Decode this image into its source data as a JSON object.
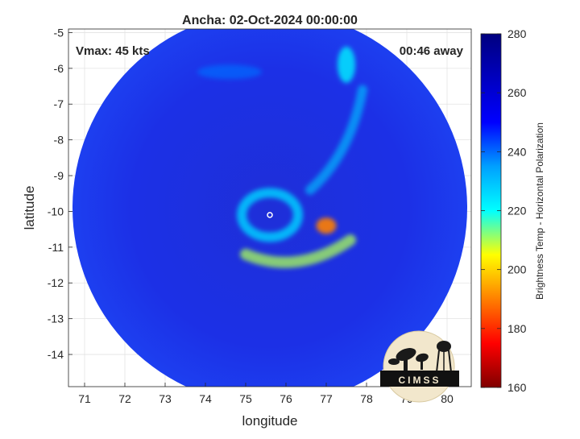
{
  "chart_data": {
    "type": "heatmap",
    "title": "Ancha: 02-Oct-2024 00:00:00",
    "annotation_left": "Vmax: 45 kts",
    "annotation_right": "00:46 away",
    "xlabel": "longitude",
    "ylabel": "latitude",
    "xlim": [
      70.6,
      80.6
    ],
    "ylim": [
      -14.9,
      -4.9
    ],
    "x_ticks": [
      71,
      72,
      73,
      74,
      75,
      76,
      77,
      78,
      79,
      80
    ],
    "y_ticks": [
      -5,
      -6,
      -7,
      -8,
      -9,
      -10,
      -11,
      -12,
      -13,
      -14
    ],
    "grid": true,
    "colorbar": {
      "label": "Brightness Temp - Horizontal Polarization",
      "min": 160,
      "max": 280,
      "ticks": [
        280,
        260,
        240,
        220,
        200,
        180,
        160
      ],
      "colormap": [
        "#7f0000",
        "#ff0000",
        "#ffff00",
        "#00ffff",
        "#0000ff",
        "#00007f"
      ]
    },
    "swath": {
      "center_lon": 75.6,
      "center_lat": -9.9,
      "radius_deg": 4.9
    },
    "storm_center": {
      "lon": 75.6,
      "lat": -10.1
    },
    "background_tb": 264,
    "features": [
      {
        "name": "eyewall-ring",
        "lon": 75.6,
        "lat": -10.1,
        "tb": 228
      },
      {
        "name": "convection-east",
        "lon": 77.0,
        "lat": -10.4,
        "tb": 190
      },
      {
        "name": "band-south",
        "lon": 76.5,
        "lat": -11.2,
        "tb": 210
      },
      {
        "name": "band-northeast",
        "lon": 77.7,
        "lat": -7.8,
        "tb": 230
      },
      {
        "name": "band-north-edge",
        "lon": 77.5,
        "lat": -5.9,
        "tb": 222
      },
      {
        "name": "cells-north",
        "lon": 74.6,
        "lat": -6.1,
        "tb": 240
      }
    ]
  },
  "logo": {
    "text": "CIMSS"
  }
}
